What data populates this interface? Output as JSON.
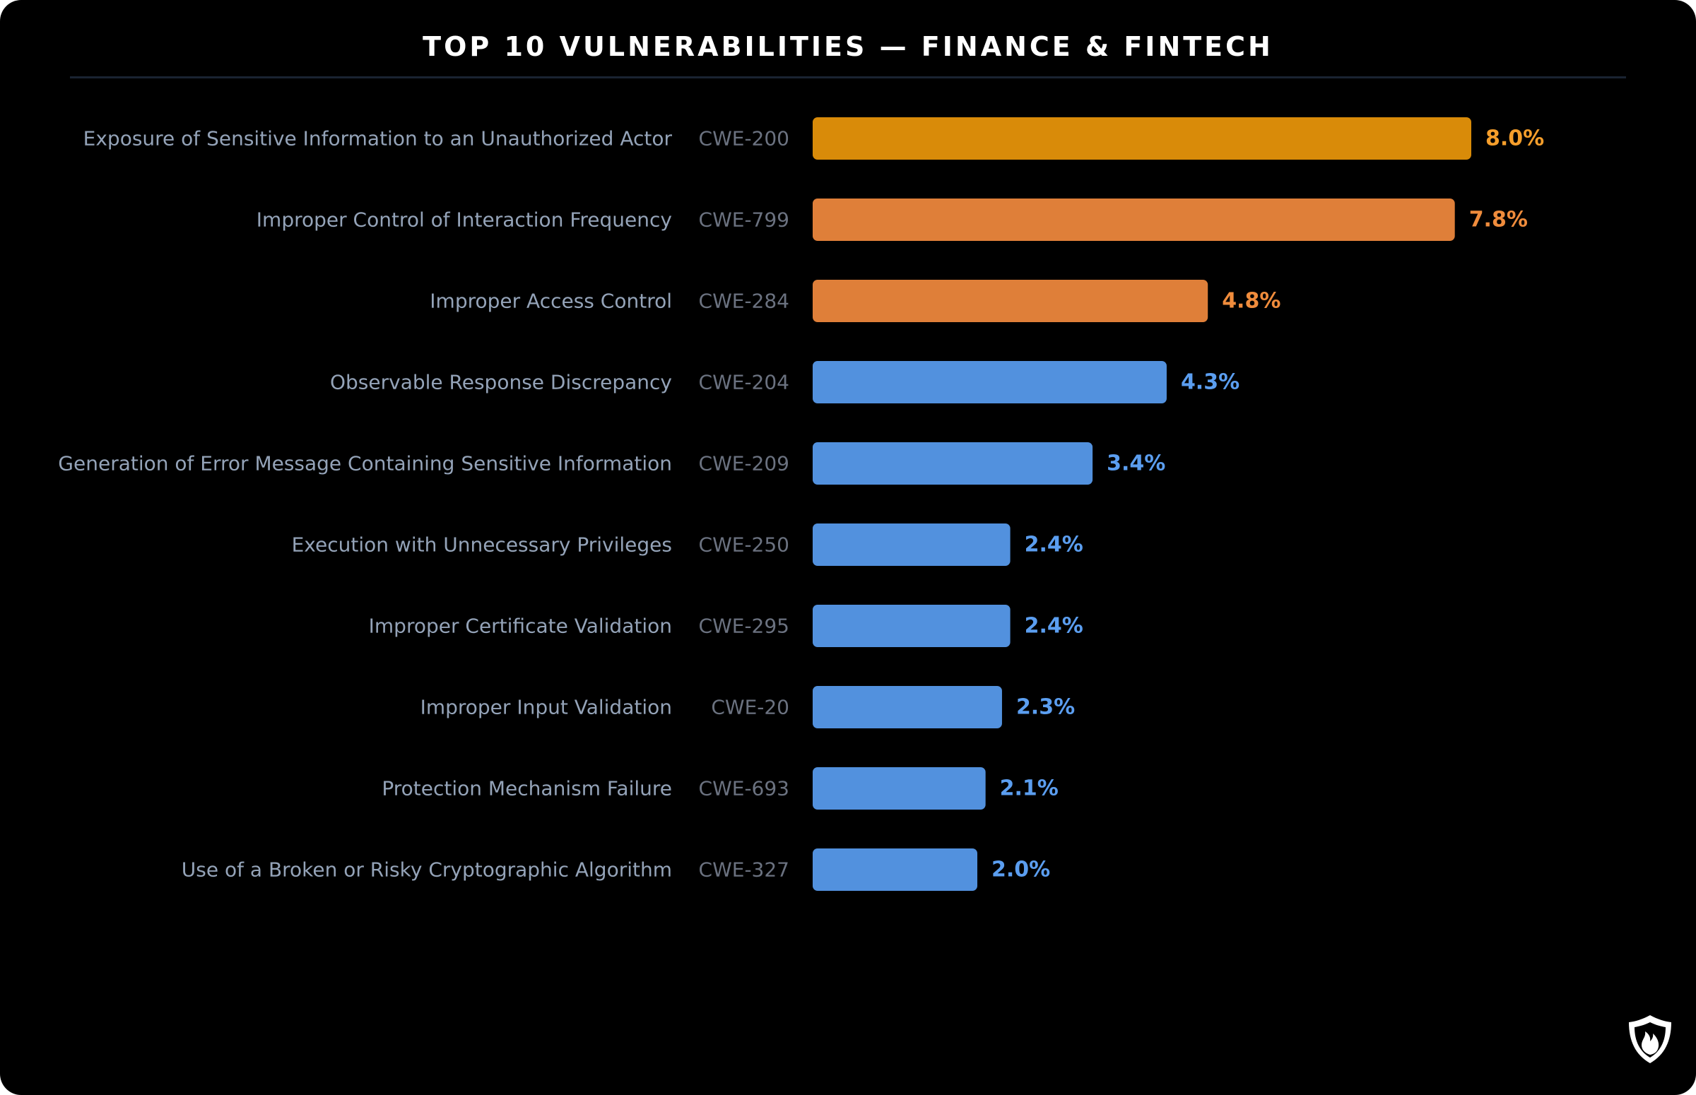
{
  "chart": {
    "title": "TOP 10 VULNERABILITIES — FINANCE & FINTECH"
  },
  "colors": {
    "background": "#000000",
    "name_label": "#94a3b8",
    "cwe_label": "#6b7280",
    "rank1_bar": "#d98b09",
    "rank1_value": "#f59e2b",
    "high_bar": "#df7f39",
    "high_value": "#f08c3c",
    "normal_bar": "#5291de",
    "normal_value": "#5b9ef0",
    "logo": "#ffffff"
  },
  "logo": {
    "icon": "shield-flame-icon"
  },
  "chart_data": {
    "type": "bar",
    "orientation": "horizontal",
    "title": "TOP 10 VULNERABILITIES — FINANCE & FINTECH",
    "xlabel": "",
    "ylabel": "",
    "xlim": [
      0,
      10
    ],
    "grid": false,
    "legend": "none",
    "categories": [
      "Exposure of Sensitive Information to an Unauthorized Actor",
      "Improper Control of Interaction Frequency",
      "Improper Access Control",
      "Observable Response Discrepancy",
      "Generation of Error Message Containing Sensitive Information",
      "Execution with Unnecessary Privileges",
      "Improper Certificate Validation",
      "Improper Input Validation",
      "Protection Mechanism Failure",
      "Use of a Broken or Risky Cryptographic Algorithm"
    ],
    "cwe_ids": [
      "CWE-200",
      "CWE-799",
      "CWE-284",
      "CWE-204",
      "CWE-209",
      "CWE-250",
      "CWE-295",
      "CWE-20",
      "CWE-693",
      "CWE-327"
    ],
    "values": [
      8.0,
      7.8,
      4.8,
      4.3,
      3.4,
      2.4,
      2.4,
      2.3,
      2.1,
      2.0
    ],
    "value_labels": [
      "8.0%",
      "7.8%",
      "4.8%",
      "4.3%",
      "3.4%",
      "2.4%",
      "2.4%",
      "2.3%",
      "2.1%",
      "2.0%"
    ],
    "bar_tiers": [
      "rank1",
      "high",
      "high",
      "normal",
      "normal",
      "normal",
      "normal",
      "normal",
      "normal",
      "normal"
    ]
  }
}
